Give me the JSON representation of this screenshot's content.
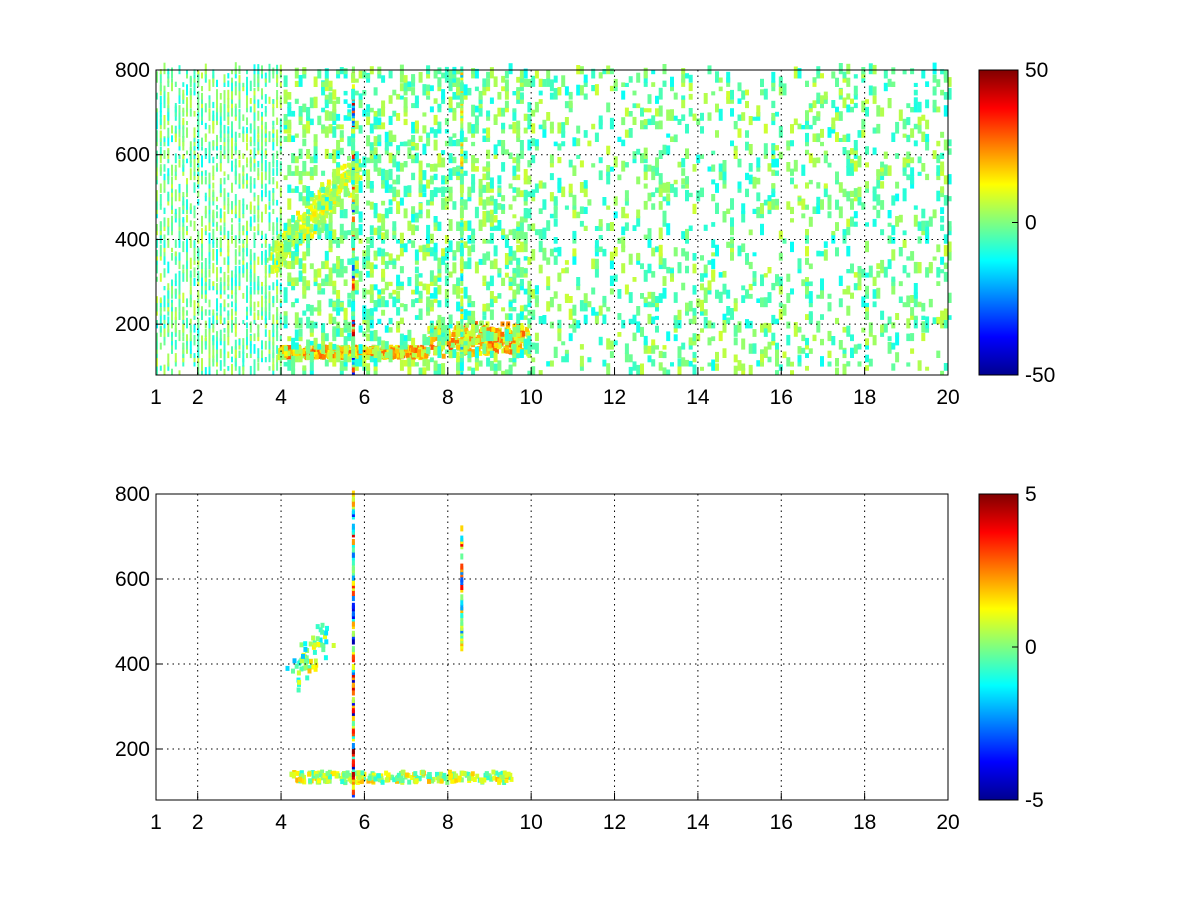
{
  "chart_data": [
    {
      "type": "heatmap",
      "xlim": [
        1,
        20
      ],
      "ylim": [
        80,
        800
      ],
      "x_ticks": [
        1,
        2,
        4,
        6,
        8,
        10,
        12,
        14,
        16,
        18,
        20
      ],
      "x_tick_labels": [
        "1",
        "2",
        "4",
        "6",
        "8",
        "10",
        "12",
        "14",
        "16",
        "18",
        "20"
      ],
      "y_ticks": [
        200,
        400,
        600,
        800
      ],
      "y_tick_labels": [
        "200",
        "400",
        "600",
        "800"
      ],
      "grid": true,
      "colormap": "jet",
      "colorbar": {
        "range": [
          -50,
          50
        ],
        "tick_values": [
          50,
          0,
          -50
        ],
        "tick_labels": [
          "50",
          "0",
          "-50"
        ]
      },
      "features": [
        {
          "kind": "band",
          "x": [
            3.9,
            9.9
          ],
          "y": [
            115,
            140
          ],
          "value_range": [
            0,
            30
          ]
        },
        {
          "kind": "ridge",
          "x": [
            3.8,
            5.7
          ],
          "y": [
            340,
            560
          ],
          "value_range": [
            0,
            15
          ]
        },
        {
          "kind": "line",
          "x": 5.7,
          "y": [
            80,
            800
          ],
          "value_range": [
            -40,
            45
          ]
        },
        {
          "kind": "line",
          "x": 8.3,
          "y": [
            80,
            800
          ],
          "value_range": [
            -20,
            20
          ]
        },
        {
          "kind": "scatter",
          "x": [
            1,
            20
          ],
          "y": [
            80,
            800
          ],
          "value_range": [
            -12,
            8
          ]
        }
      ]
    },
    {
      "type": "heatmap",
      "xlim": [
        1,
        20
      ],
      "ylim": [
        80,
        800
      ],
      "x_ticks": [
        1,
        2,
        4,
        6,
        8,
        10,
        12,
        14,
        16,
        18,
        20
      ],
      "x_tick_labels": [
        "1",
        "2",
        "4",
        "6",
        "8",
        "10",
        "12",
        "14",
        "16",
        "18",
        "20"
      ],
      "y_ticks": [
        200,
        400,
        600,
        800
      ],
      "y_tick_labels": [
        "200",
        "400",
        "600",
        "800"
      ],
      "grid": true,
      "colormap": "jet",
      "colorbar": {
        "range": [
          -5,
          5
        ],
        "tick_values": [
          5,
          0,
          -5
        ],
        "tick_labels": [
          "5",
          "0",
          "-5"
        ]
      },
      "features": [
        {
          "kind": "band",
          "x": [
            4.2,
            9.5
          ],
          "y": [
            115,
            140
          ],
          "value_range": [
            -1,
            2
          ]
        },
        {
          "kind": "ridge",
          "x": [
            4.3,
            5.0
          ],
          "y": [
            350,
            470
          ],
          "value_range": [
            -2,
            2
          ]
        },
        {
          "kind": "line",
          "x": 5.7,
          "y": [
            80,
            800
          ],
          "value_range": [
            -5,
            5
          ]
        },
        {
          "kind": "line",
          "x": 8.3,
          "y": [
            430,
            720
          ],
          "value_range": [
            -3,
            4
          ]
        }
      ]
    }
  ]
}
